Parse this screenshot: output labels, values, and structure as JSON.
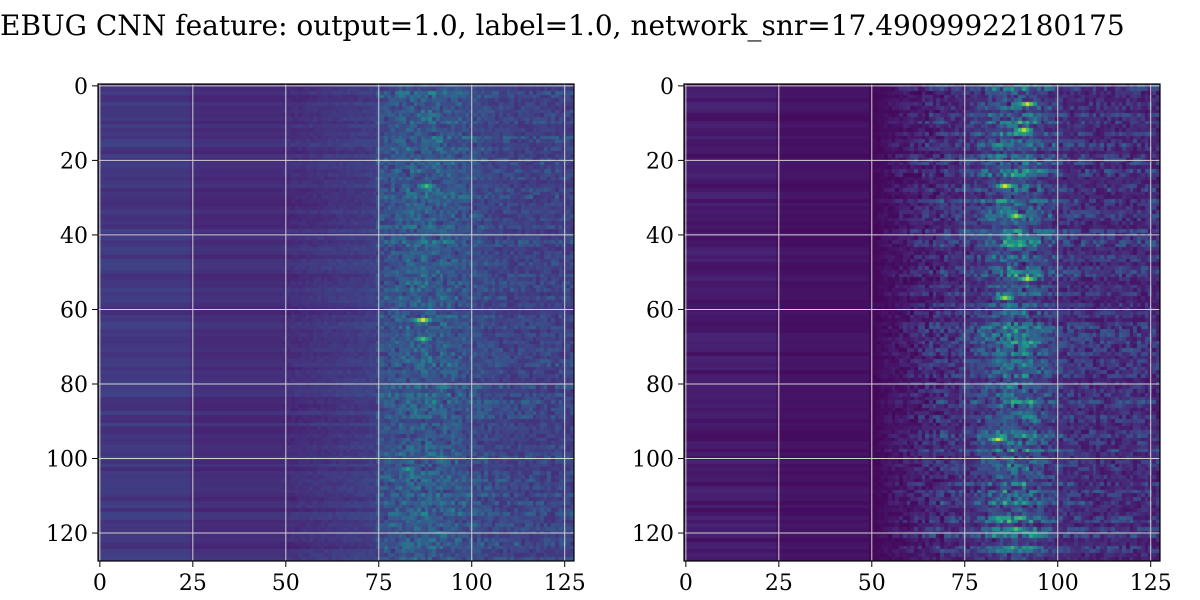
{
  "title": "EBUG CNN feature: output=1.0, label=1.0, network_snr=17.49099922180175",
  "colors": {
    "background": "#ffffff",
    "grid": "#d0d0d0",
    "spine": "#000000",
    "colormap": "viridis"
  },
  "chart_data": [
    {
      "type": "heatmap",
      "colormap": "viridis",
      "grid": true,
      "rows": 128,
      "cols": 128,
      "xlim": [
        -0.5,
        127.5
      ],
      "ylim": [
        127.5,
        -0.5
      ],
      "xticks": [
        0,
        25,
        50,
        75,
        100,
        125
      ],
      "yticks": [
        0,
        20,
        40,
        60,
        80,
        100,
        120
      ],
      "hotspots": [
        {
          "row": 63,
          "col": 87,
          "value": 0.95
        },
        {
          "row": 68,
          "col": 87,
          "value": 0.7
        },
        {
          "row": 27,
          "col": 88,
          "value": 0.7
        },
        {
          "row": 103,
          "col": 83,
          "value": 0.55
        }
      ]
    },
    {
      "type": "heatmap",
      "colormap": "viridis",
      "grid": true,
      "rows": 128,
      "cols": 128,
      "xlim": [
        -0.5,
        127.5
      ],
      "ylim": [
        127.5,
        -0.5
      ],
      "xticks": [
        0,
        25,
        50,
        75,
        100,
        125
      ],
      "yticks": [
        0,
        20,
        40,
        60,
        80,
        100,
        120
      ],
      "hotspots": [
        {
          "row": 5,
          "col": 92,
          "value": 0.95
        },
        {
          "row": 12,
          "col": 91,
          "value": 0.9
        },
        {
          "row": 27,
          "col": 86,
          "value": 0.95
        },
        {
          "row": 35,
          "col": 89,
          "value": 0.85
        },
        {
          "row": 52,
          "col": 92,
          "value": 0.9
        },
        {
          "row": 57,
          "col": 86,
          "value": 0.85
        },
        {
          "row": 95,
          "col": 84,
          "value": 0.95
        },
        {
          "row": 119,
          "col": 89,
          "value": 0.7
        }
      ]
    }
  ]
}
